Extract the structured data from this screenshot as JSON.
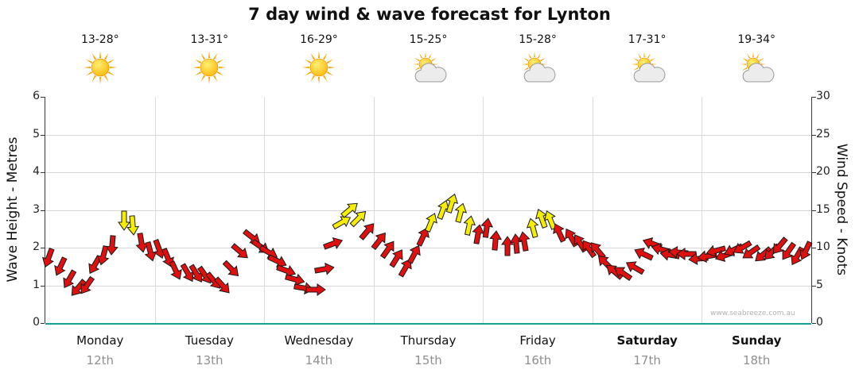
{
  "title": "7 day wind & wave forecast for Lynton",
  "watermark": "www.seabreeze.com.au",
  "left_axis": {
    "label": "Wave Height - Metres",
    "ticks": [
      0,
      1,
      2,
      3,
      4,
      5,
      6
    ]
  },
  "right_axis": {
    "label": "Wind Speed - Knots",
    "ticks": [
      0,
      5,
      10,
      15,
      20,
      25,
      30
    ]
  },
  "days": [
    {
      "name": "Monday",
      "date": "12th",
      "temp": "13-28°",
      "icon": "sun",
      "bold": false
    },
    {
      "name": "Tuesday",
      "date": "13th",
      "temp": "13-31°",
      "icon": "sun",
      "bold": false
    },
    {
      "name": "Wednesday",
      "date": "14th",
      "temp": "16-29°",
      "icon": "sun",
      "bold": false
    },
    {
      "name": "Thursday",
      "date": "15th",
      "temp": "15-25°",
      "icon": "sun-cloud",
      "bold": false
    },
    {
      "name": "Friday",
      "date": "16th",
      "temp": "15-28°",
      "icon": "sun-cloud",
      "bold": false
    },
    {
      "name": "Saturday",
      "date": "17th",
      "temp": "17-31°",
      "icon": "sun-cloud",
      "bold": true
    },
    {
      "name": "Sunday",
      "date": "18th",
      "temp": "19-34°",
      "icon": "sun-cloud",
      "bold": true
    }
  ],
  "chart_data": {
    "type": "scatter",
    "mark": "wind-arrows",
    "categories": [
      "Monday 12th",
      "Tuesday 13th",
      "Wednesday 14th",
      "Thursday 15th",
      "Friday 16th",
      "Saturday 17th",
      "Sunday 18th"
    ],
    "points_per_day": 12,
    "ylim_wave_m": [
      0,
      6
    ],
    "ylim_knots": [
      0,
      30
    ],
    "wind_speed_knots": [
      [
        8.5,
        7.5,
        6,
        4.5,
        5,
        7.5,
        9,
        10.5,
        13.5,
        13,
        10.5,
        9.5
      ],
      [
        10,
        8.5,
        7,
        6.5,
        6.5,
        6.5,
        5.5,
        5,
        7,
        9.5,
        11.5,
        10
      ],
      [
        9.5,
        8,
        7,
        6,
        4.5,
        4.5,
        7,
        10.5,
        13.5,
        15,
        14,
        12
      ],
      [
        11,
        10,
        8.5,
        7.5,
        9,
        11.5,
        13.5,
        15,
        16,
        14.5,
        13,
        12
      ],
      [
        12.5,
        11,
        10,
        10.5,
        11,
        12.5,
        14,
        13.5,
        12,
        11.5,
        10.5,
        10
      ],
      [
        9.5,
        8,
        7,
        6.5,
        7.5,
        9,
        10.5,
        10,
        9,
        9.5,
        9,
        8.5
      ],
      [
        9,
        9.5,
        9,
        9.5,
        10,
        9.5,
        9,
        9.5,
        10,
        9.5,
        9,
        9.5
      ]
    ],
    "wind_dir_deg": [
      [
        200,
        205,
        210,
        220,
        215,
        210,
        195,
        185,
        180,
        175,
        170,
        165
      ],
      [
        160,
        158,
        155,
        150,
        148,
        145,
        140,
        138,
        135,
        130,
        128,
        125
      ],
      [
        120,
        115,
        110,
        105,
        100,
        90,
        80,
        70,
        60,
        50,
        45,
        40
      ],
      [
        38,
        35,
        32,
        30,
        28,
        25,
        22,
        20,
        18,
        15,
        12,
        10
      ],
      [
        8,
        5,
        0,
        355,
        350,
        345,
        340,
        338,
        335,
        330,
        328,
        325
      ],
      [
        320,
        315,
        310,
        305,
        300,
        295,
        290,
        285,
        280,
        275,
        270,
        265
      ],
      [
        260,
        255,
        250,
        245,
        240,
        235,
        230,
        225,
        220,
        215,
        210,
        205
      ]
    ],
    "arrow_colors": [
      "rrrrrrrryyrr",
      "rrrrrrrrrrrr",
      "rrrrrrrryyyr",
      "rrrrrryyyyyr",
      "rrrrryyyrrrr",
      "rrrrrrrrrrrr",
      "rrrrrrrrrrrr"
    ],
    "color_red": "#e01010",
    "color_yellow": "#f5ee00",
    "gridline_color": "#d7d7d7",
    "baseline_color": "#14a0a0"
  }
}
